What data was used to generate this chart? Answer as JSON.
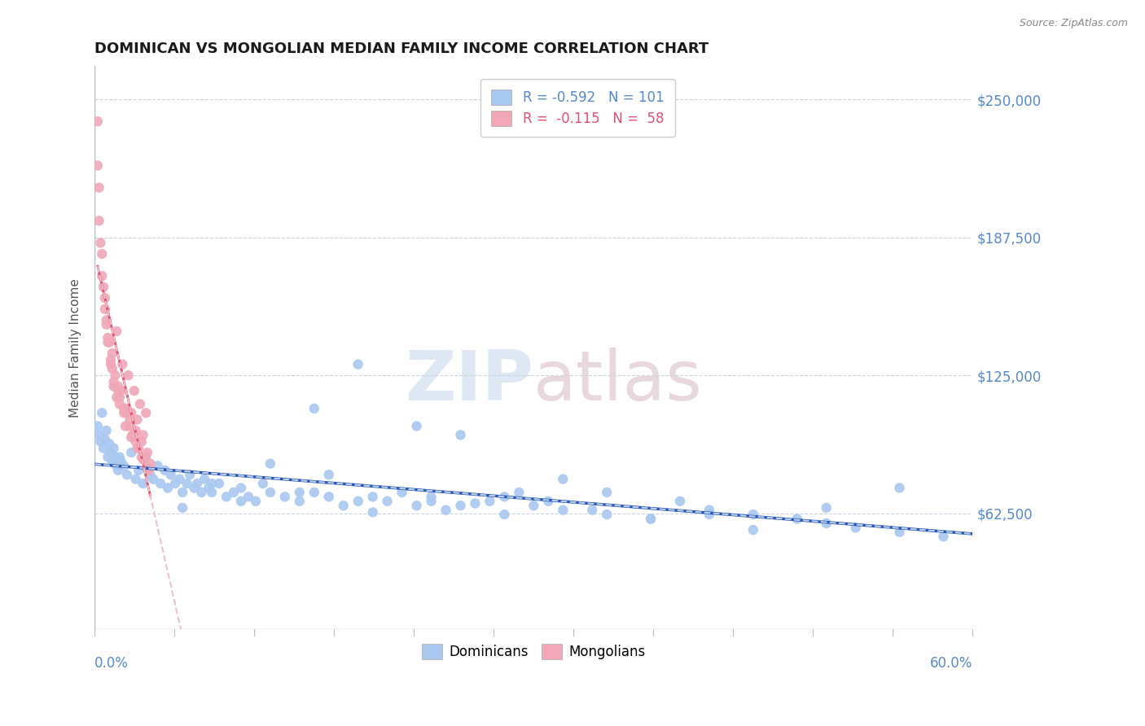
{
  "title": "DOMINICAN VS MONGOLIAN MEDIAN FAMILY INCOME CORRELATION CHART",
  "source": "Source: ZipAtlas.com",
  "ylabel": "Median Family Income",
  "yticks": [
    62500,
    125000,
    187500,
    250000
  ],
  "ytick_labels": [
    "$62,500",
    "$125,000",
    "$187,500",
    "$250,000"
  ],
  "xmin": 0.0,
  "xmax": 0.6,
  "ymin": 10000,
  "ymax": 265000,
  "watermark_zip": "ZIP",
  "watermark_atlas": "atlas",
  "dominican_color": "#a8c8f0",
  "mongolian_color": "#f0a8b8",
  "dominican_trend_color": "#2255bb",
  "mongolian_trend_color": "#e05070",
  "dominican_trend_dashed_color": "#c0d0e8",
  "mongolian_trend_dashed_color": "#f0c0c8",
  "dominican_R": -0.592,
  "dominican_N": 101,
  "mongolian_R": -0.115,
  "mongolian_N": 58,
  "title_fontsize": 13,
  "tick_label_color": "#5588cc",
  "background_color": "#ffffff",
  "grid_color": "#c8d4e0",
  "dominican_x": [
    0.002,
    0.003,
    0.004,
    0.005,
    0.006,
    0.007,
    0.008,
    0.009,
    0.01,
    0.011,
    0.012,
    0.013,
    0.014,
    0.015,
    0.016,
    0.017,
    0.018,
    0.02,
    0.022,
    0.025,
    0.028,
    0.03,
    0.033,
    0.035,
    0.038,
    0.04,
    0.043,
    0.045,
    0.048,
    0.05,
    0.052,
    0.055,
    0.058,
    0.06,
    0.063,
    0.065,
    0.068,
    0.07,
    0.073,
    0.075,
    0.078,
    0.08,
    0.085,
    0.09,
    0.095,
    0.1,
    0.105,
    0.11,
    0.115,
    0.12,
    0.13,
    0.14,
    0.15,
    0.16,
    0.17,
    0.18,
    0.19,
    0.2,
    0.21,
    0.22,
    0.23,
    0.24,
    0.25,
    0.27,
    0.28,
    0.3,
    0.32,
    0.35,
    0.38,
    0.4,
    0.42,
    0.45,
    0.48,
    0.5,
    0.52,
    0.55,
    0.58,
    0.15,
    0.25,
    0.18,
    0.22,
    0.12,
    0.32,
    0.28,
    0.35,
    0.42,
    0.38,
    0.5,
    0.45,
    0.55,
    0.08,
    0.1,
    0.14,
    0.16,
    0.06,
    0.19,
    0.23,
    0.26,
    0.29,
    0.31,
    0.34
  ],
  "dominican_y": [
    102000,
    98000,
    95000,
    108000,
    92000,
    96000,
    100000,
    88000,
    94000,
    90000,
    86000,
    92000,
    88000,
    84000,
    82000,
    88000,
    86000,
    84000,
    80000,
    90000,
    78000,
    82000,
    76000,
    88000,
    80000,
    78000,
    84000,
    76000,
    82000,
    74000,
    80000,
    76000,
    78000,
    72000,
    76000,
    80000,
    74000,
    76000,
    72000,
    78000,
    74000,
    72000,
    76000,
    70000,
    72000,
    74000,
    70000,
    68000,
    76000,
    72000,
    70000,
    68000,
    72000,
    70000,
    66000,
    68000,
    70000,
    68000,
    72000,
    66000,
    68000,
    64000,
    66000,
    68000,
    62000,
    66000,
    64000,
    62000,
    60000,
    68000,
    64000,
    62000,
    60000,
    58000,
    56000,
    54000,
    52000,
    110000,
    98000,
    130000,
    102000,
    85000,
    78000,
    70000,
    72000,
    62000,
    60000,
    65000,
    55000,
    74000,
    76000,
    68000,
    72000,
    80000,
    65000,
    63000,
    70000,
    67000,
    72000,
    68000,
    64000
  ],
  "mongolian_x": [
    0.002,
    0.003,
    0.005,
    0.007,
    0.009,
    0.011,
    0.013,
    0.015,
    0.017,
    0.019,
    0.021,
    0.023,
    0.025,
    0.027,
    0.029,
    0.031,
    0.033,
    0.035,
    0.008,
    0.012,
    0.016,
    0.02,
    0.024,
    0.028,
    0.032,
    0.036,
    0.003,
    0.006,
    0.01,
    0.014,
    0.018,
    0.022,
    0.026,
    0.03,
    0.034,
    0.004,
    0.038,
    0.007,
    0.011,
    0.015,
    0.002,
    0.009,
    0.013,
    0.017,
    0.021,
    0.025,
    0.029,
    0.033,
    0.037,
    0.005,
    0.008,
    0.012,
    0.016,
    0.02,
    0.024,
    0.028,
    0.032,
    0.036
  ],
  "mongolian_y": [
    240000,
    210000,
    180000,
    160000,
    140000,
    130000,
    120000,
    145000,
    115000,
    130000,
    110000,
    125000,
    108000,
    118000,
    105000,
    112000,
    98000,
    108000,
    150000,
    135000,
    120000,
    110000,
    105000,
    100000,
    95000,
    90000,
    195000,
    165000,
    140000,
    125000,
    118000,
    108000,
    98000,
    92000,
    88000,
    185000,
    85000,
    155000,
    132000,
    115000,
    220000,
    142000,
    122000,
    112000,
    102000,
    97000,
    92000,
    87000,
    82000,
    170000,
    148000,
    128000,
    118000,
    108000,
    102000,
    95000,
    88000,
    83000
  ]
}
